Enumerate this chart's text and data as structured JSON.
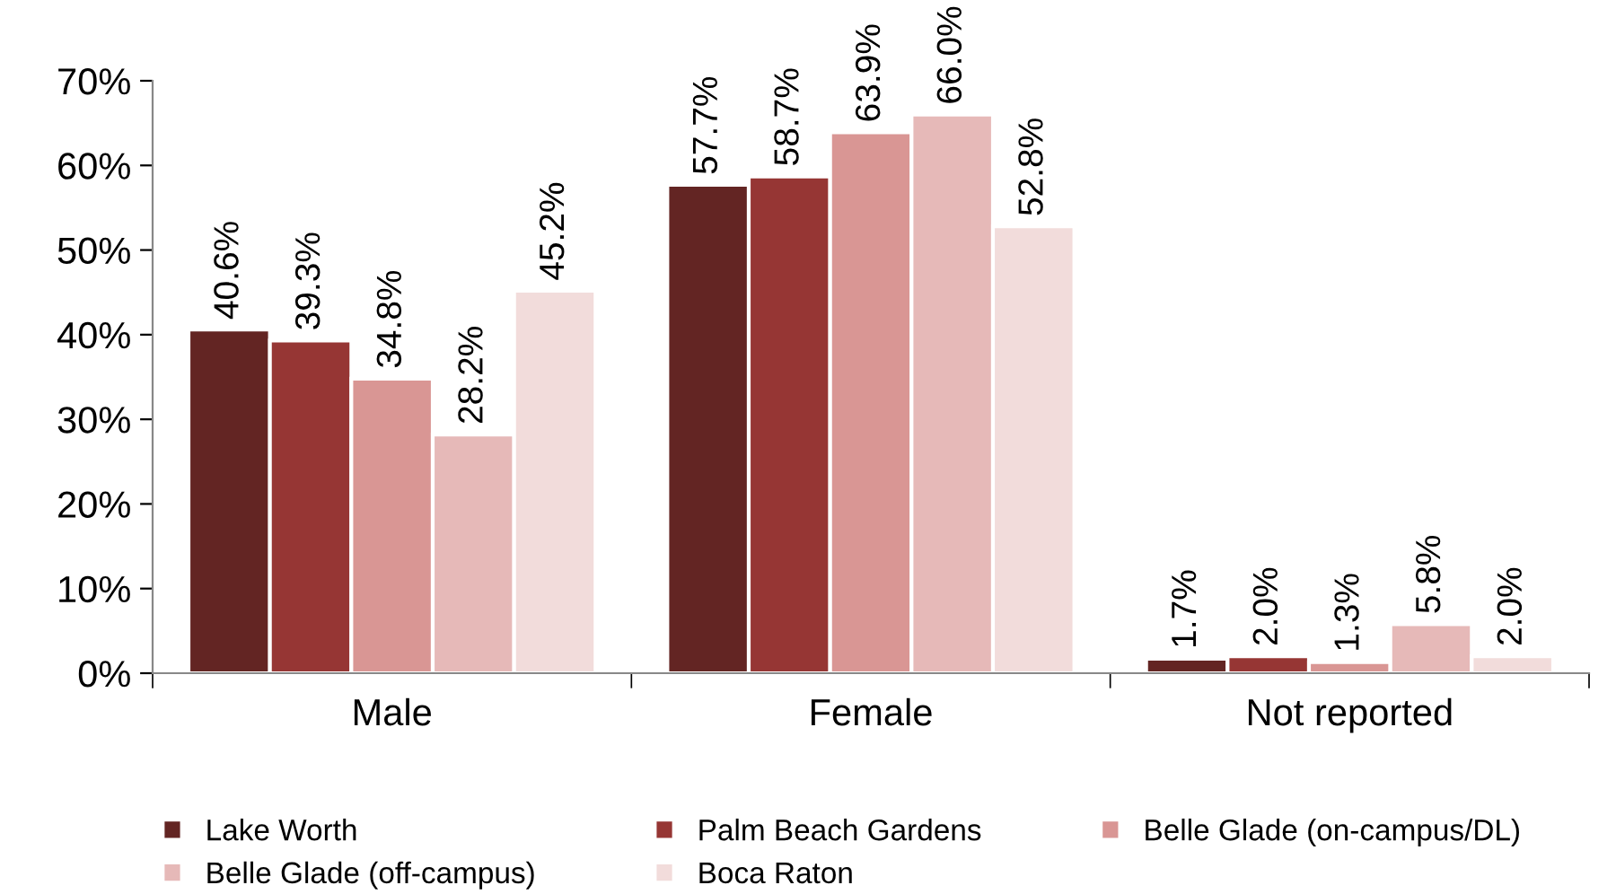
{
  "chart_data": {
    "type": "bar",
    "categories": [
      "Male",
      "Female",
      "Not reported"
    ],
    "series": [
      {
        "name": "Lake Worth",
        "color": "#632523",
        "values": [
          40.6,
          57.7,
          1.7
        ],
        "value_labels": [
          "40.6%",
          "57.7%",
          "1.7%"
        ]
      },
      {
        "name": "Palm Beach Gardens",
        "color": "#963634",
        "values": [
          39.3,
          58.7,
          2.0
        ],
        "value_labels": [
          "39.3%",
          "58.7%",
          "2.0%"
        ]
      },
      {
        "name": "Belle Glade (on-campus/DL)",
        "color": "#d99694",
        "values": [
          34.8,
          63.9,
          1.3
        ],
        "value_labels": [
          "34.8%",
          "63.9%",
          "1.3%"
        ]
      },
      {
        "name": "Belle Glade (off-campus)",
        "color": "#e6b9b8",
        "values": [
          28.2,
          66.0,
          5.8
        ],
        "value_labels": [
          "28.2%",
          "66.0%",
          "5.8%"
        ]
      },
      {
        "name": "Boca Raton",
        "color": "#f2dcdb",
        "values": [
          45.2,
          52.8,
          2.0
        ],
        "value_labels": [
          "45.2%",
          "52.8%",
          "2.0%"
        ]
      }
    ],
    "ylim": [
      0,
      70
    ],
    "yticks": [
      {
        "value": 0,
        "label": "0%"
      },
      {
        "value": 10,
        "label": "10%"
      },
      {
        "value": 20,
        "label": "20%"
      },
      {
        "value": 30,
        "label": "30%"
      },
      {
        "value": 40,
        "label": "40%"
      },
      {
        "value": 50,
        "label": "50%"
      },
      {
        "value": 60,
        "label": "60%"
      },
      {
        "value": 70,
        "label": "70%"
      }
    ],
    "grid": false,
    "legend": "bottom"
  }
}
